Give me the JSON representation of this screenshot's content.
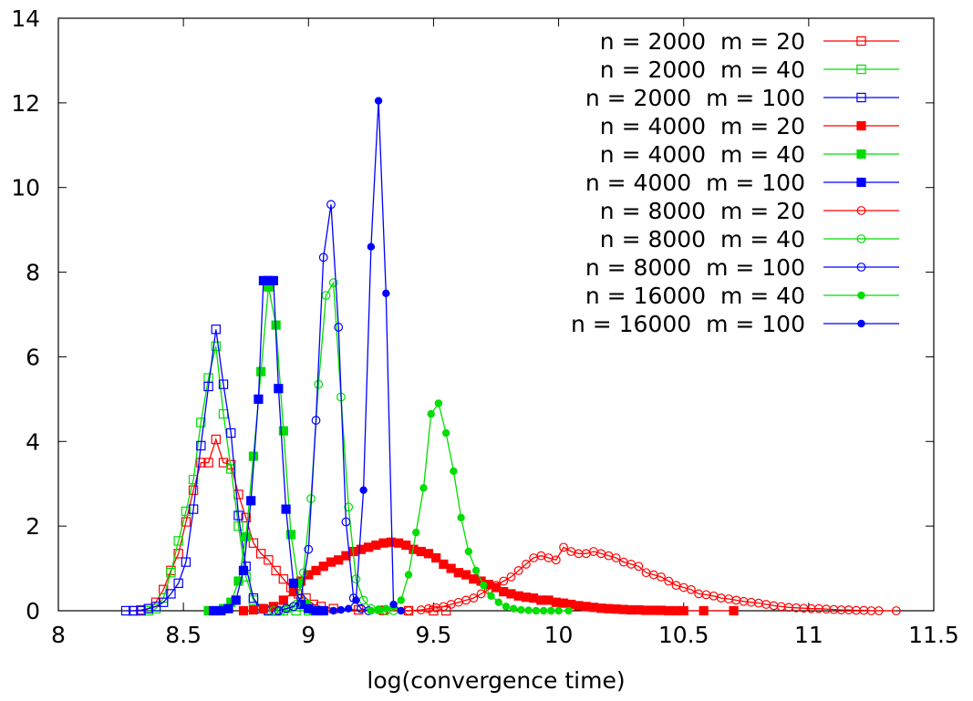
{
  "chart_data": {
    "type": "line",
    "xlabel": "log(convergence time)",
    "ylabel": "",
    "xlim": [
      8,
      11.5
    ],
    "ylim": [
      0,
      14
    ],
    "xticks": [
      "8",
      "8.5",
      "9",
      "9.5",
      "10",
      "10.5",
      "11",
      "11.5"
    ],
    "yticks": [
      "0",
      "2",
      "4",
      "6",
      "8",
      "10",
      "12",
      "14"
    ],
    "legend_position": "top-right",
    "series": [
      {
        "name": "n = 2000  m = 20",
        "color": "#ff0000",
        "marker": "square-open",
        "x": [
          8.3,
          8.33,
          8.36,
          8.39,
          8.42,
          8.45,
          8.48,
          8.51,
          8.54,
          8.57,
          8.6,
          8.63,
          8.66,
          8.69,
          8.72,
          8.75,
          8.78,
          8.81,
          8.84,
          8.87,
          8.9,
          8.93,
          8.96,
          8.99,
          9.02,
          9.05,
          9.1,
          9.2,
          9.3,
          9.4,
          9.5,
          9.55
        ],
        "y": [
          0,
          0.02,
          0.05,
          0.2,
          0.5,
          0.95,
          1.35,
          2.1,
          2.85,
          3.5,
          3.5,
          4.05,
          3.5,
          3.45,
          2.75,
          2.2,
          1.6,
          1.35,
          1.2,
          0.95,
          0.75,
          0.55,
          0.4,
          0.3,
          0.15,
          0.1,
          0.05,
          0.02,
          0.01,
          0,
          0,
          0
        ]
      },
      {
        "name": "n = 2000  m = 40",
        "color": "#00dd00",
        "marker": "square-open",
        "x": [
          8.36,
          8.39,
          8.42,
          8.45,
          8.48,
          8.51,
          8.54,
          8.57,
          8.6,
          8.63,
          8.66,
          8.69,
          8.72,
          8.75,
          8.78,
          8.81,
          8.84,
          8.87,
          8.9,
          8.95,
          9.0
        ],
        "y": [
          0,
          0.05,
          0.3,
          0.9,
          1.65,
          2.35,
          3.1,
          4.45,
          5.5,
          6.25,
          4.65,
          3.35,
          2.0,
          0.8,
          0.25,
          0.05,
          0.02,
          0,
          0,
          0,
          0
        ]
      },
      {
        "name": "n = 2000  m = 100",
        "color": "#0000ff",
        "marker": "square-open",
        "x": [
          8.27,
          8.3,
          8.33,
          8.36,
          8.39,
          8.42,
          8.45,
          8.48,
          8.51,
          8.54,
          8.57,
          8.6,
          8.63,
          8.66,
          8.69,
          8.72,
          8.75,
          8.78,
          8.81,
          8.84,
          8.87
        ],
        "y": [
          0,
          0,
          0,
          0.05,
          0.1,
          0.2,
          0.4,
          0.65,
          1.15,
          2.4,
          3.9,
          5.3,
          6.65,
          5.35,
          4.2,
          2.25,
          1.05,
          0.3,
          0.05,
          0,
          0
        ]
      },
      {
        "name": "n = 4000  m = 20",
        "color": "#ff0000",
        "marker": "square-filled",
        "x": [
          8.74,
          8.78,
          8.82,
          8.86,
          8.9,
          8.94,
          8.97,
          9.0,
          9.03,
          9.06,
          9.09,
          9.12,
          9.15,
          9.18,
          9.21,
          9.24,
          9.27,
          9.3,
          9.33,
          9.36,
          9.39,
          9.42,
          9.45,
          9.48,
          9.51,
          9.54,
          9.57,
          9.6,
          9.63,
          9.66,
          9.69,
          9.72,
          9.75,
          9.78,
          9.81,
          9.84,
          9.87,
          9.9,
          9.93,
          9.96,
          9.99,
          10.02,
          10.05,
          10.08,
          10.11,
          10.14,
          10.17,
          10.2,
          10.23,
          10.26,
          10.29,
          10.32,
          10.35,
          10.38,
          10.41,
          10.44,
          10.47,
          10.5,
          10.58,
          10.7
        ],
        "y": [
          0,
          0.02,
          0.05,
          0.1,
          0.25,
          0.45,
          0.7,
          0.85,
          0.95,
          1.05,
          1.15,
          1.2,
          1.3,
          1.4,
          1.45,
          1.5,
          1.55,
          1.6,
          1.62,
          1.6,
          1.55,
          1.45,
          1.4,
          1.35,
          1.25,
          1.1,
          1.0,
          0.9,
          0.85,
          0.75,
          0.7,
          0.62,
          0.55,
          0.45,
          0.4,
          0.35,
          0.32,
          0.3,
          0.25,
          0.25,
          0.2,
          0.18,
          0.15,
          0.12,
          0.1,
          0.08,
          0.06,
          0.05,
          0.04,
          0.03,
          0.02,
          0.02,
          0.01,
          0.01,
          0.01,
          0,
          0,
          0,
          0,
          0
        ]
      },
      {
        "name": "n = 4000  m = 40",
        "color": "#00dd00",
        "marker": "square-filled",
        "x": [
          8.6,
          8.63,
          8.66,
          8.69,
          8.72,
          8.75,
          8.78,
          8.81,
          8.84,
          8.87,
          8.9,
          8.93,
          8.96,
          8.99,
          9.02,
          9.05
        ],
        "y": [
          0,
          0,
          0.05,
          0.2,
          0.7,
          1.75,
          3.65,
          5.65,
          7.65,
          6.75,
          4.25,
          1.8,
          0.65,
          0.15,
          0.02,
          0
        ]
      },
      {
        "name": "n = 4000  m = 100",
        "color": "#0000ff",
        "marker": "square-filled",
        "x": [
          8.62,
          8.65,
          8.68,
          8.71,
          8.74,
          8.77,
          8.8,
          8.82,
          8.84,
          8.86,
          8.88,
          8.91,
          8.94,
          8.97,
          9.0,
          9.03,
          9.06
        ],
        "y": [
          0,
          0,
          0.05,
          0.25,
          0.95,
          2.6,
          5.0,
          7.8,
          7.8,
          7.8,
          5.25,
          2.4,
          0.65,
          0.15,
          0.05,
          0,
          0
        ]
      },
      {
        "name": "n = 8000  m = 20",
        "color": "#ff0000",
        "marker": "circle-open",
        "x": [
          9.3,
          9.4,
          9.45,
          9.48,
          9.51,
          9.54,
          9.57,
          9.6,
          9.63,
          9.66,
          9.69,
          9.72,
          9.75,
          9.78,
          9.81,
          9.84,
          9.87,
          9.9,
          9.93,
          9.96,
          9.99,
          10.02,
          10.05,
          10.08,
          10.11,
          10.14,
          10.17,
          10.2,
          10.23,
          10.26,
          10.29,
          10.32,
          10.35,
          10.38,
          10.41,
          10.44,
          10.47,
          10.5,
          10.53,
          10.56,
          10.59,
          10.62,
          10.65,
          10.68,
          10.71,
          10.74,
          10.77,
          10.8,
          10.83,
          10.86,
          10.89,
          10.92,
          10.95,
          10.98,
          11.01,
          11.04,
          11.07,
          11.1,
          11.13,
          11.16,
          11.19,
          11.22,
          11.25,
          11.28,
          11.35
        ],
        "y": [
          0,
          0,
          0.02,
          0.05,
          0.07,
          0.1,
          0.15,
          0.2,
          0.25,
          0.3,
          0.4,
          0.5,
          0.6,
          0.7,
          0.8,
          0.95,
          1.1,
          1.25,
          1.3,
          1.25,
          1.2,
          1.5,
          1.4,
          1.35,
          1.35,
          1.4,
          1.35,
          1.3,
          1.25,
          1.15,
          1.1,
          1.05,
          0.9,
          0.85,
          0.8,
          0.7,
          0.6,
          0.55,
          0.5,
          0.4,
          0.38,
          0.35,
          0.3,
          0.28,
          0.25,
          0.22,
          0.2,
          0.18,
          0.15,
          0.12,
          0.1,
          0.08,
          0.07,
          0.06,
          0.05,
          0.05,
          0.04,
          0.03,
          0.02,
          0.02,
          0.01,
          0.01,
          0,
          0,
          0
        ]
      },
      {
        "name": "n = 8000  m = 40",
        "color": "#00dd00",
        "marker": "circle-open",
        "x": [
          8.86,
          8.89,
          8.92,
          8.95,
          8.98,
          9.01,
          9.04,
          9.07,
          9.1,
          9.13,
          9.16,
          9.19,
          9.22,
          9.25,
          9.28,
          9.31,
          9.34
        ],
        "y": [
          0,
          0,
          0.05,
          0.15,
          0.9,
          2.65,
          5.35,
          7.45,
          7.75,
          5.05,
          2.45,
          0.75,
          0.25,
          0.05,
          0.02,
          0,
          0
        ]
      },
      {
        "name": "n = 8000  m = 100",
        "color": "#0000ff",
        "marker": "circle-open",
        "x": [
          8.88,
          8.91,
          8.94,
          8.97,
          9.0,
          9.03,
          9.06,
          9.09,
          9.12,
          9.15,
          9.18,
          9.21,
          9.24
        ],
        "y": [
          0,
          0.05,
          0.1,
          0.3,
          1.45,
          4.5,
          8.35,
          9.6,
          6.7,
          2.1,
          0.3,
          0.05,
          0
        ]
      },
      {
        "name": "n = 16000  m = 40",
        "color": "#00dd00",
        "marker": "circle-filled",
        "x": [
          9.25,
          9.28,
          9.31,
          9.34,
          9.37,
          9.4,
          9.43,
          9.46,
          9.49,
          9.52,
          9.55,
          9.58,
          9.61,
          9.64,
          9.67,
          9.7,
          9.73,
          9.76,
          9.79,
          9.82,
          9.85,
          9.88,
          9.91,
          9.94,
          9.97,
          10.0,
          10.04
        ],
        "y": [
          0,
          0.02,
          0.05,
          0.1,
          0.25,
          0.85,
          1.85,
          2.9,
          4.65,
          4.9,
          4.2,
          3.3,
          2.2,
          1.4,
          0.95,
          0.6,
          0.35,
          0.2,
          0.1,
          0.05,
          0.02,
          0.01,
          0,
          0,
          0,
          0,
          0
        ]
      },
      {
        "name": "n = 16000  m = 100",
        "color": "#0000ff",
        "marker": "circle-filled",
        "x": [
          9.1,
          9.13,
          9.16,
          9.19,
          9.22,
          9.25,
          9.28,
          9.31,
          9.34,
          9.37
        ],
        "y": [
          0,
          0.02,
          0.05,
          0.25,
          2.85,
          8.6,
          12.05,
          7.5,
          0.15,
          0
        ]
      }
    ]
  }
}
